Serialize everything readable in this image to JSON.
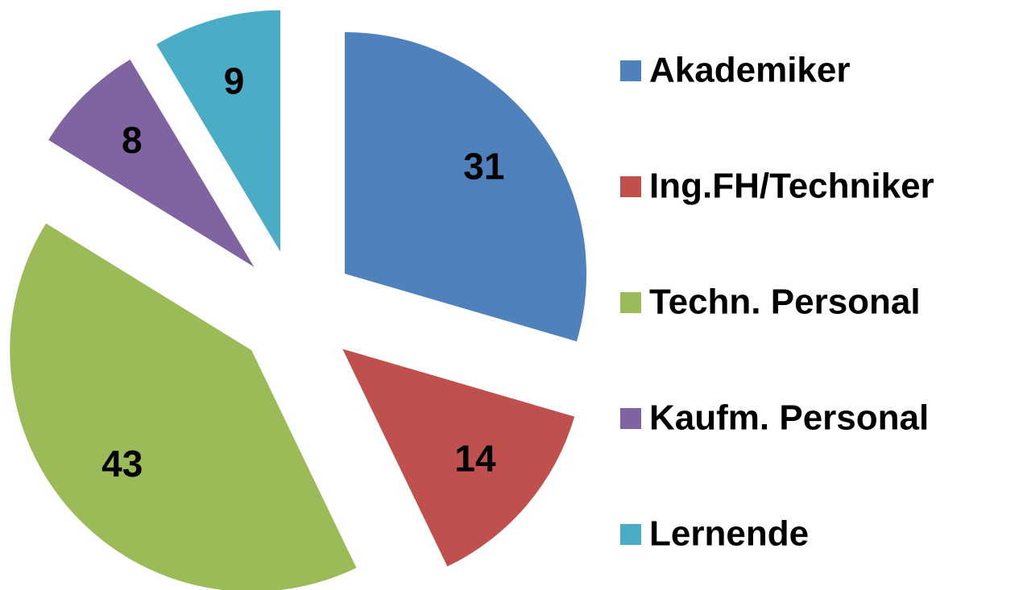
{
  "chart_data": {
    "type": "pie",
    "categories": [
      "Akademiker",
      "Ing.FH/Techniker",
      "Techn. Personal",
      "Kaufm. Personal",
      "Lernende"
    ],
    "values": [
      31,
      14,
      43,
      8,
      9
    ],
    "colors": [
      "#4f81bd",
      "#c0504d",
      "#9bbb59",
      "#8064a2",
      "#4bacc6"
    ],
    "legend": "right"
  }
}
